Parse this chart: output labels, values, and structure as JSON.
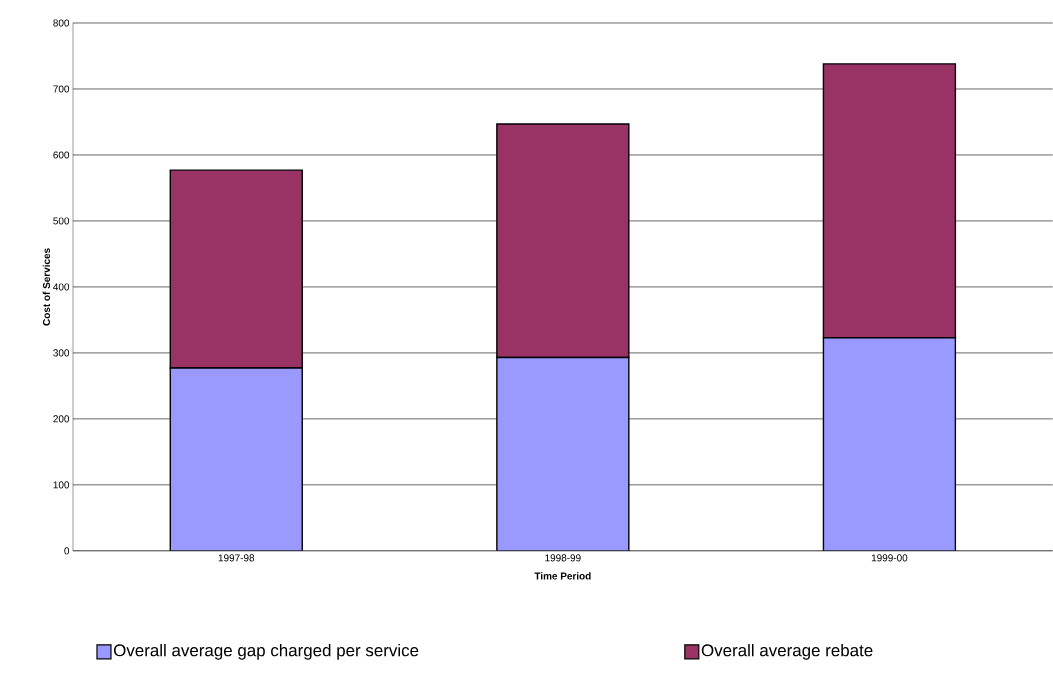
{
  "chart_data": {
    "type": "bar",
    "stacked": true,
    "xlabel": "Time Period",
    "ylabel": "Cost of Services",
    "categories": [
      "1997-98",
      "1998-99",
      "1999-00"
    ],
    "series": [
      {
        "name": "Overall average gap charged per service",
        "color": "#9999ff",
        "values": [
          277,
          293,
          323
        ]
      },
      {
        "name": "Overall average rebate",
        "color": "#993366",
        "values": [
          300,
          354,
          415
        ]
      }
    ],
    "ylim": [
      0,
      800
    ],
    "yticks": [
      0,
      100,
      200,
      300,
      400,
      500,
      600,
      700,
      800
    ],
    "grid": "y",
    "legend": "bottom"
  }
}
